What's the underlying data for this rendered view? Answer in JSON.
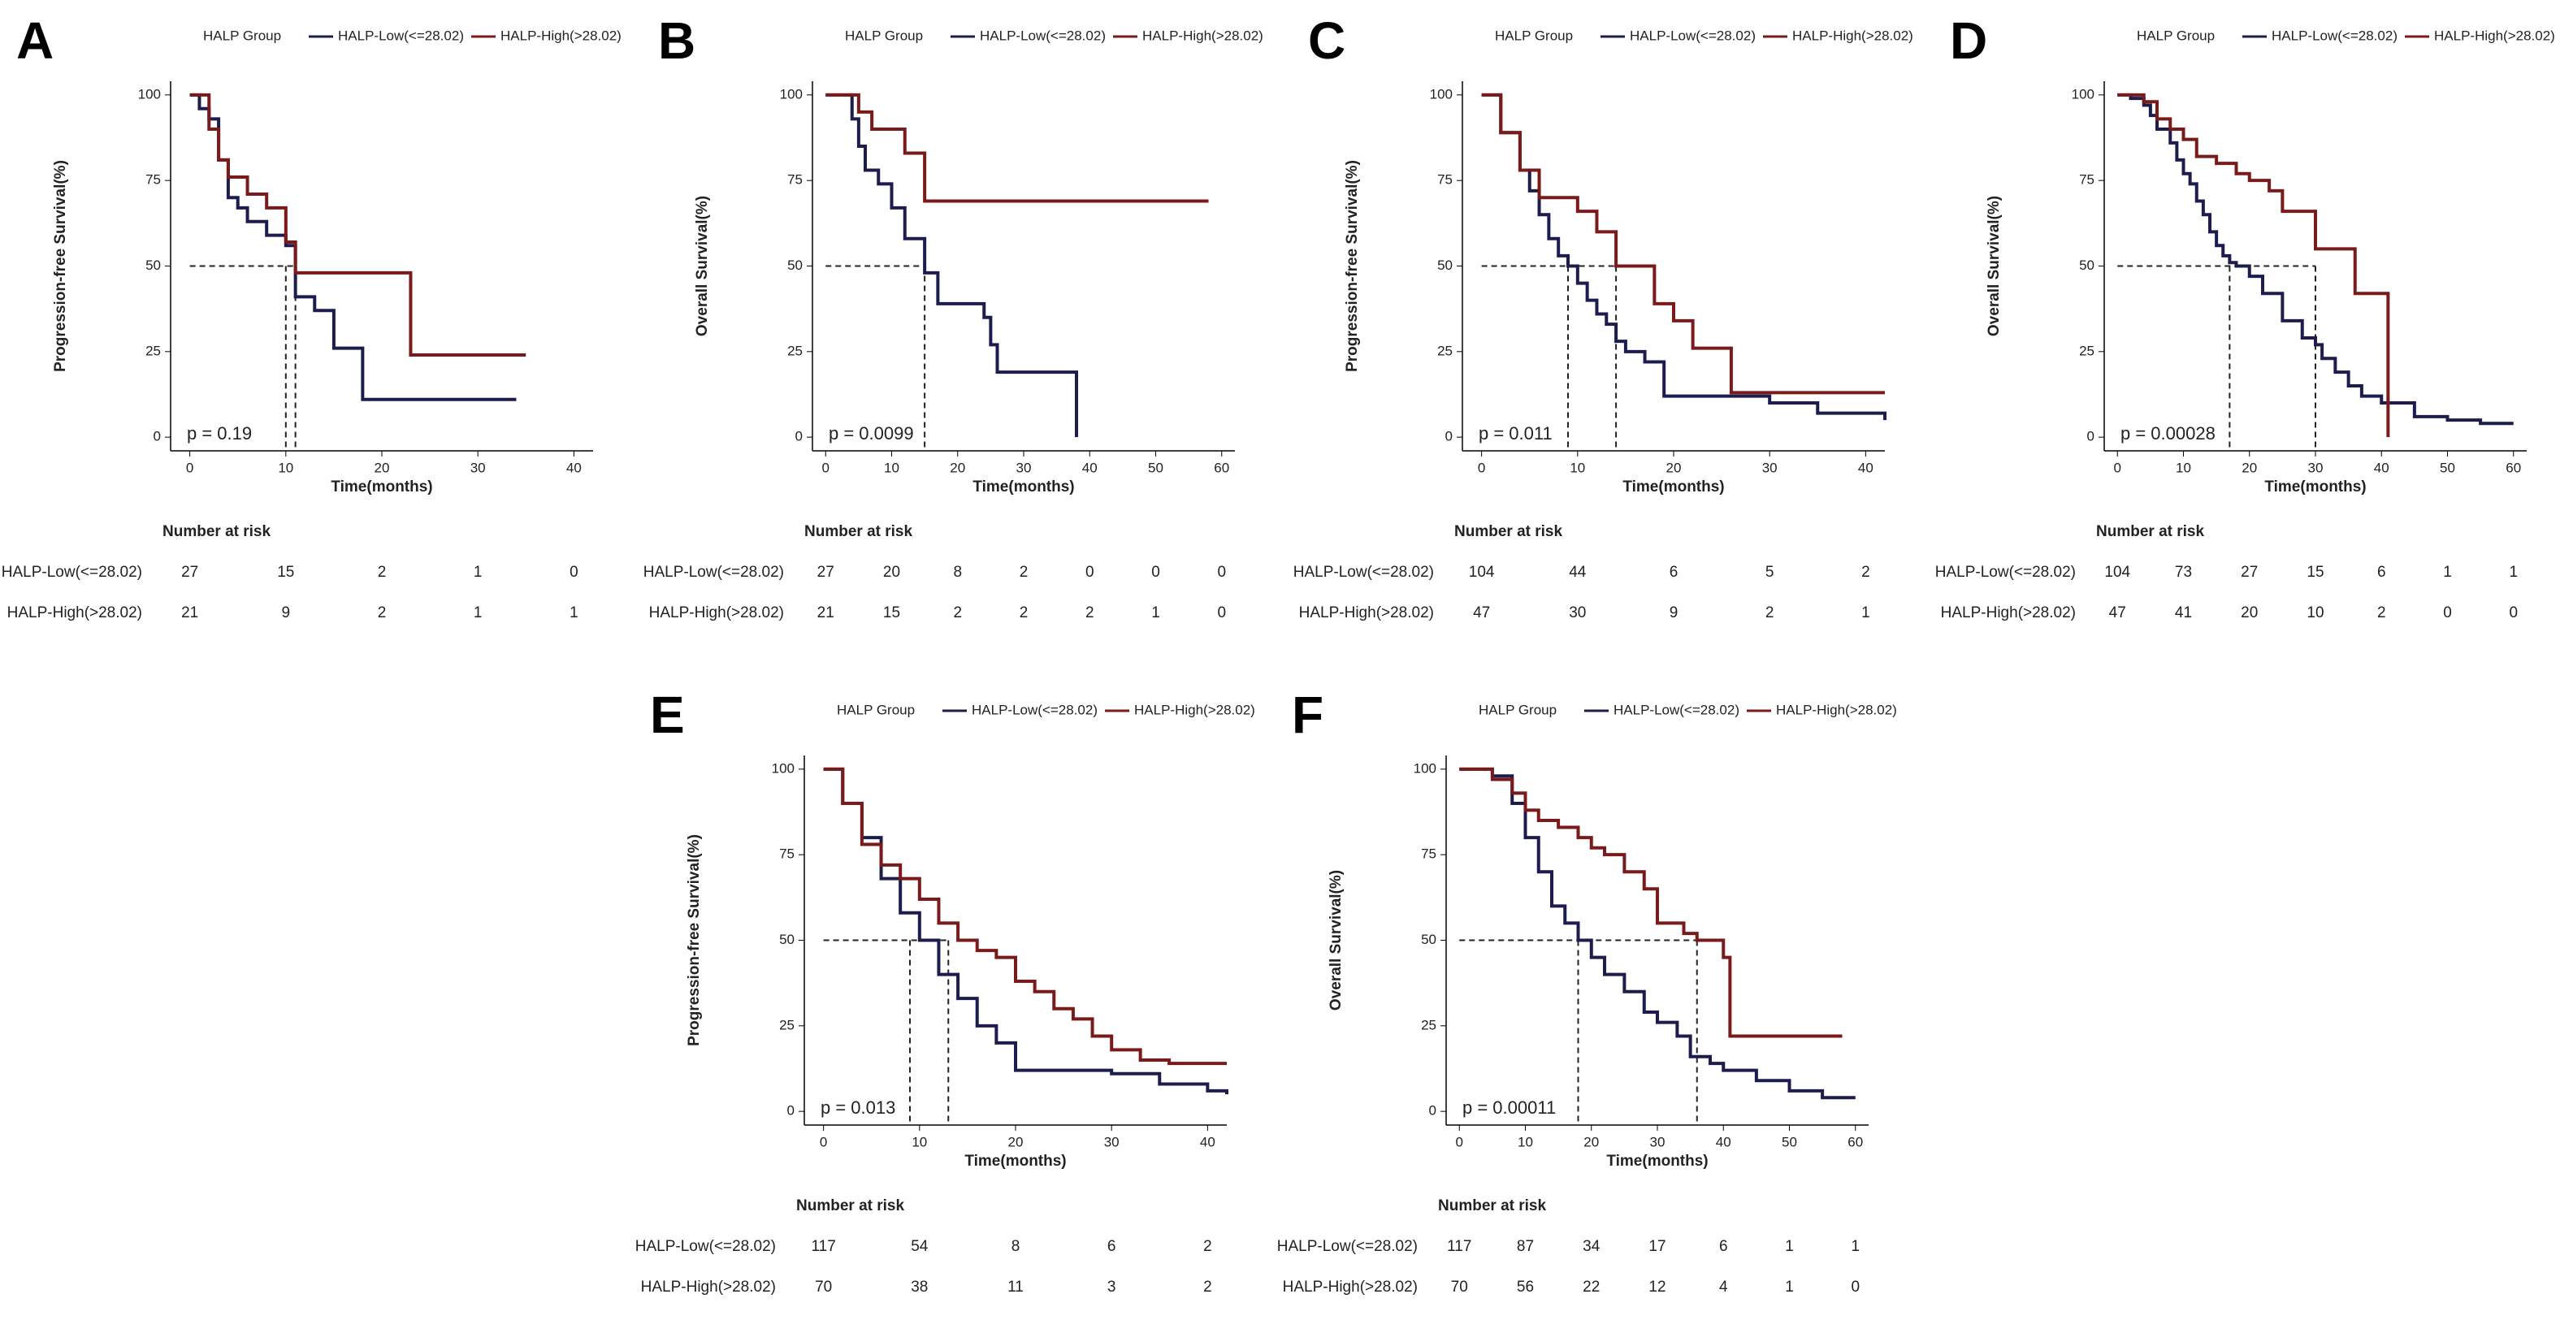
{
  "chart_data": [
    {
      "type": "km",
      "panel": "A",
      "legend_title": "HALP Group",
      "xlabel": "Time(months)",
      "ylabel": "Progression-free Survival(%)",
      "annotation": "p = 0.19",
      "xlim": [
        -2,
        42
      ],
      "ylim": [
        -4,
        104
      ],
      "xticks": [
        0,
        10,
        20,
        30,
        40
      ],
      "yticks": [
        0,
        25,
        50,
        75,
        100
      ],
      "median_level": 50,
      "medians": [
        10,
        11
      ],
      "series": [
        {
          "name": "HALP-Low(<=28.02)",
          "color": "#1c1c4e",
          "x": [
            0,
            1,
            2,
            3,
            4,
            5,
            6,
            8,
            10,
            11,
            13,
            15,
            18,
            34
          ],
          "y": [
            100,
            96,
            93,
            81,
            70,
            67,
            63,
            59,
            56,
            41,
            37,
            26,
            11,
            11
          ]
        },
        {
          "name": "HALP-High(>28.02)",
          "color": "#7a1a1a",
          "x": [
            0,
            2,
            3,
            4,
            6,
            8,
            10,
            11,
            23,
            35
          ],
          "y": [
            100,
            90,
            81,
            76,
            71,
            67,
            57,
            48,
            24,
            24
          ]
        }
      ],
      "risk_table": {
        "title": "Number at risk",
        "counts": [
          [
            27,
            15,
            2,
            1,
            0
          ],
          [
            21,
            9,
            2,
            1,
            1
          ]
        ]
      }
    },
    {
      "type": "km",
      "panel": "B",
      "legend_title": "HALP Group",
      "xlabel": "Time(months)",
      "ylabel": "Overall Survival(%)",
      "annotation": "p = 0.0099",
      "xlim": [
        -2,
        62
      ],
      "ylim": [
        -4,
        104
      ],
      "xticks": [
        0,
        10,
        20,
        30,
        40,
        50,
        60
      ],
      "yticks": [
        0,
        25,
        50,
        75,
        100
      ],
      "median_level": 50,
      "medians": [
        15
      ],
      "series": [
        {
          "name": "HALP-Low(<=28.02)",
          "color": "#1c1c4e",
          "x": [
            0,
            4,
            5,
            6,
            8,
            10,
            12,
            15,
            17,
            24,
            25,
            26,
            37,
            38
          ],
          "y": [
            100,
            93,
            85,
            78,
            74,
            67,
            58,
            48,
            39,
            35,
            27,
            19,
            19,
            0
          ]
        },
        {
          "name": "HALP-High(>28.02)",
          "color": "#7a1a1a",
          "x": [
            0,
            5,
            7,
            12,
            15,
            58
          ],
          "y": [
            100,
            95,
            90,
            83,
            69,
            69
          ]
        }
      ],
      "risk_table": {
        "title": "Number at risk",
        "counts": [
          [
            27,
            20,
            8,
            2,
            0,
            0,
            0
          ],
          [
            21,
            15,
            2,
            2,
            2,
            1,
            0
          ]
        ]
      }
    },
    {
      "type": "km",
      "panel": "C",
      "legend_title": "HALP Group",
      "xlabel": "Time(months)",
      "ylabel": "Progression-free Survival(%)",
      "annotation": "p = 0.011",
      "xlim": [
        -2,
        42
      ],
      "ylim": [
        -4,
        104
      ],
      "xticks": [
        0,
        10,
        20,
        30,
        40
      ],
      "yticks": [
        0,
        25,
        50,
        75,
        100
      ],
      "median_level": 50,
      "medians": [
        9,
        14
      ],
      "series": [
        {
          "name": "HALP-Low(<=28.02)",
          "color": "#1c1c4e",
          "x": [
            0,
            2,
            4,
            5,
            6,
            7,
            8,
            9,
            10,
            11,
            12,
            13,
            14,
            15,
            17,
            19,
            30,
            35,
            42
          ],
          "y": [
            100,
            89,
            78,
            72,
            65,
            58,
            53,
            50,
            45,
            40,
            36,
            33,
            28,
            25,
            22,
            12,
            10,
            7,
            5
          ]
        },
        {
          "name": "HALP-High(>28.02)",
          "color": "#7a1a1a",
          "x": [
            0,
            2,
            4,
            6,
            10,
            12,
            14,
            18,
            20,
            22,
            26,
            42
          ],
          "y": [
            100,
            89,
            78,
            70,
            66,
            60,
            50,
            39,
            34,
            26,
            13,
            13
          ]
        }
      ],
      "risk_table": {
        "title": "Number at risk",
        "counts": [
          [
            104,
            44,
            6,
            5,
            2
          ],
          [
            47,
            30,
            9,
            2,
            1
          ]
        ]
      }
    },
    {
      "type": "km",
      "panel": "D",
      "legend_title": "HALP Group",
      "xlabel": "Time(months)",
      "ylabel": "Overall Survival(%)",
      "annotation": "p = 0.00028",
      "xlim": [
        -2,
        62
      ],
      "ylim": [
        -4,
        104
      ],
      "xticks": [
        0,
        10,
        20,
        30,
        40,
        50,
        60
      ],
      "yticks": [
        0,
        25,
        50,
        75,
        100
      ],
      "median_level": 50,
      "medians": [
        17,
        30
      ],
      "series": [
        {
          "name": "HALP-Low(<=28.02)",
          "color": "#1c1c4e",
          "x": [
            0,
            2,
            4,
            5,
            6,
            8,
            9,
            10,
            11,
            12,
            13,
            14,
            15,
            16,
            17,
            18,
            20,
            22,
            25,
            28,
            30,
            31,
            33,
            35,
            37,
            40,
            45,
            50,
            55,
            60
          ],
          "y": [
            100,
            99,
            97,
            94,
            90,
            86,
            81,
            77,
            74,
            69,
            65,
            60,
            56,
            53,
            51,
            50,
            47,
            42,
            34,
            29,
            27,
            23,
            19,
            15,
            12,
            10,
            6,
            5,
            4,
            4
          ]
        },
        {
          "name": "HALP-High(>28.02)",
          "color": "#7a1a1a",
          "x": [
            0,
            4,
            6,
            8,
            10,
            12,
            15,
            18,
            20,
            23,
            25,
            30,
            36,
            41
          ],
          "y": [
            100,
            98,
            93,
            90,
            87,
            82,
            80,
            77,
            75,
            72,
            66,
            55,
            42,
            0
          ]
        }
      ],
      "risk_table": {
        "title": "Number at risk",
        "counts": [
          [
            104,
            73,
            27,
            15,
            6,
            1,
            1
          ],
          [
            47,
            41,
            20,
            10,
            2,
            0,
            0
          ]
        ]
      }
    },
    {
      "type": "km",
      "panel": "E",
      "legend_title": "HALP Group",
      "xlabel": "Time(months)",
      "ylabel": "Progression-free Survival(%)",
      "annotation": "p = 0.013",
      "xlim": [
        -2,
        42
      ],
      "ylim": [
        -4,
        104
      ],
      "xticks": [
        0,
        10,
        20,
        30,
        40
      ],
      "yticks": [
        0,
        25,
        50,
        75,
        100
      ],
      "median_level": 50,
      "medians": [
        9,
        13
      ],
      "series": [
        {
          "name": "HALP-Low(<=28.02)",
          "color": "#1c1c4e",
          "x": [
            0,
            2,
            4,
            6,
            8,
            10,
            12,
            14,
            16,
            18,
            20,
            30,
            35,
            40,
            42
          ],
          "y": [
            100,
            90,
            80,
            68,
            58,
            50,
            40,
            33,
            25,
            20,
            12,
            11,
            8,
            6,
            5
          ]
        },
        {
          "name": "HALP-High(>28.02)",
          "color": "#7a1a1a",
          "x": [
            0,
            2,
            4,
            6,
            8,
            10,
            12,
            14,
            16,
            18,
            20,
            22,
            24,
            26,
            28,
            30,
            33,
            36,
            42
          ],
          "y": [
            100,
            90,
            78,
            72,
            68,
            62,
            55,
            50,
            47,
            45,
            38,
            35,
            30,
            27,
            22,
            18,
            15,
            14,
            14
          ]
        }
      ],
      "risk_table": {
        "title": "Number at risk",
        "counts": [
          [
            117,
            54,
            8,
            6,
            2
          ],
          [
            70,
            38,
            11,
            3,
            2
          ]
        ]
      }
    },
    {
      "type": "km",
      "panel": "F",
      "legend_title": "HALP Group",
      "xlabel": "Time(months)",
      "ylabel": "Overall Survival(%)",
      "annotation": "p = 0.00011",
      "xlim": [
        -2,
        62
      ],
      "ylim": [
        -4,
        104
      ],
      "xticks": [
        0,
        10,
        20,
        30,
        40,
        50,
        60
      ],
      "yticks": [
        0,
        25,
        50,
        75,
        100
      ],
      "median_level": 50,
      "medians": [
        18,
        36
      ],
      "series": [
        {
          "name": "HALP-Low(<=28.02)",
          "color": "#1c1c4e",
          "x": [
            0,
            5,
            8,
            10,
            12,
            14,
            16,
            18,
            20,
            22,
            25,
            28,
            30,
            33,
            35,
            38,
            40,
            45,
            50,
            55,
            60
          ],
          "y": [
            100,
            98,
            90,
            80,
            70,
            60,
            55,
            50,
            45,
            40,
            35,
            29,
            26,
            22,
            16,
            14,
            12,
            9,
            6,
            4,
            4
          ]
        },
        {
          "name": "HALP-High(>28.02)",
          "color": "#7a1a1a",
          "x": [
            0,
            5,
            8,
            10,
            12,
            15,
            18,
            20,
            22,
            25,
            28,
            30,
            34,
            36,
            40,
            41,
            58
          ],
          "y": [
            100,
            97,
            93,
            88,
            85,
            83,
            80,
            77,
            75,
            70,
            65,
            55,
            52,
            50,
            45,
            22,
            22
          ]
        }
      ],
      "risk_table": {
        "title": "Number at risk",
        "counts": [
          [
            117,
            87,
            34,
            17,
            6,
            1,
            1
          ],
          [
            70,
            56,
            22,
            12,
            4,
            1,
            0
          ]
        ]
      }
    }
  ]
}
